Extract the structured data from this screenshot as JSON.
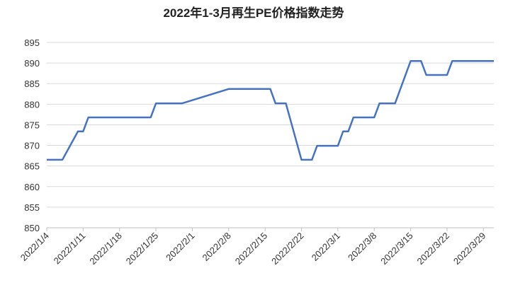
{
  "chart_data": {
    "type": "line",
    "title": "2022年1-3月再生PE价格指数走势",
    "x": [
      "2022/1/4",
      "2022/1/7",
      "2022/1/10",
      "2022/1/11",
      "2022/1/12",
      "2022/1/24",
      "2022/1/25",
      "2022/1/30",
      "2022/2/8",
      "2022/2/16",
      "2022/2/17",
      "2022/2/19",
      "2022/2/22",
      "2022/2/24",
      "2022/2/25",
      "2022/3/1",
      "2022/3/2",
      "2022/3/3",
      "2022/3/4",
      "2022/3/8",
      "2022/3/9",
      "2022/3/12",
      "2022/3/15",
      "2022/3/17",
      "2022/3/18",
      "2022/3/22",
      "2022/3/23",
      "2022/3/31"
    ],
    "series": [
      {
        "color": "#4472c4",
        "values": [
          866.5,
          866.5,
          873.4,
          873.4,
          876.8,
          876.8,
          880.2,
          880.2,
          883.7,
          883.7,
          880.2,
          880.2,
          866.5,
          866.5,
          869.9,
          869.9,
          873.4,
          873.4,
          876.8,
          876.8,
          880.2,
          880.2,
          890.5,
          890.5,
          887.1,
          887.1,
          890.5,
          890.5
        ]
      }
    ],
    "xlim": [
      "2022/1/4",
      "2022/3/31"
    ],
    "xticks": [
      "2022/1/4",
      "2022/1/11",
      "2022/1/18",
      "2022/1/25",
      "2022/2/1",
      "2022/2/8",
      "2022/2/15",
      "2022/2/22",
      "2022/3/1",
      "2022/3/8",
      "2022/3/15",
      "2022/3/22",
      "2022/3/29"
    ],
    "ylim": [
      850,
      895
    ],
    "yticks": [
      850,
      855,
      860,
      865,
      870,
      875,
      880,
      885,
      890,
      895
    ],
    "grid": true
  }
}
